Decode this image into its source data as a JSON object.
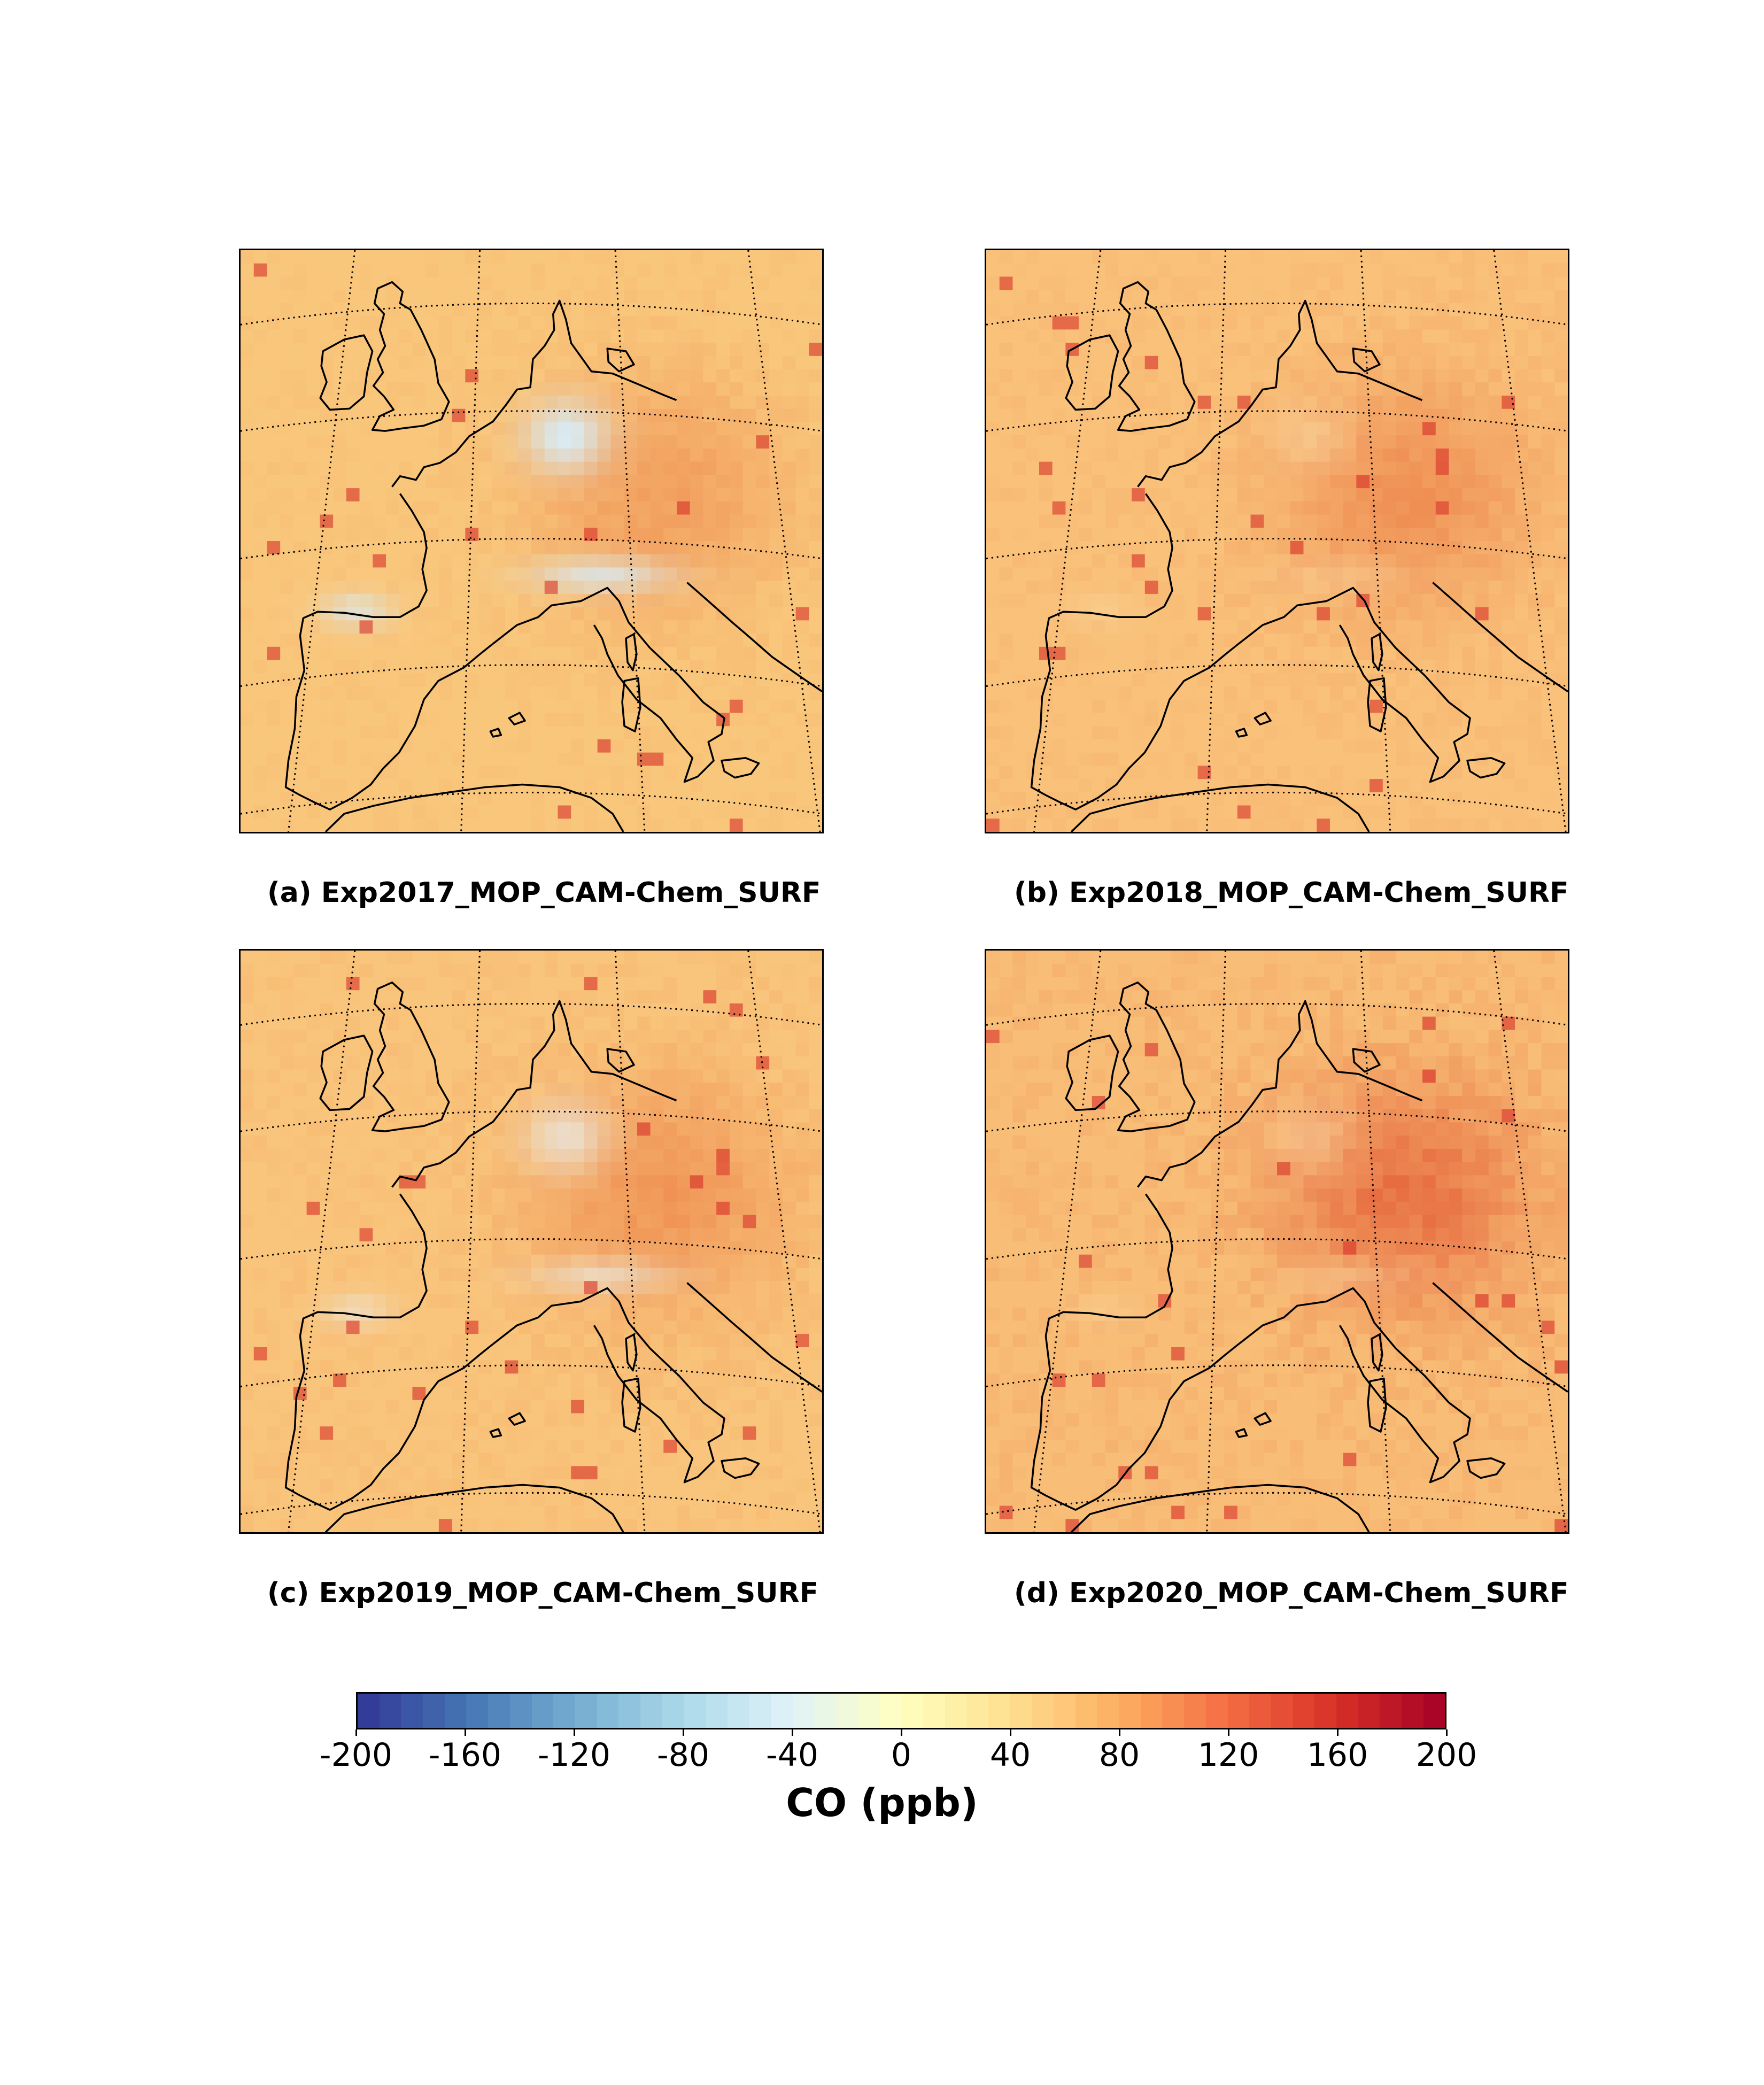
{
  "figure": {
    "panels": [
      {
        "caption": "(a) Exp2017_MOP_CAM-Chem_SURF",
        "base": "#f9c77c",
        "hot": "#f19a5a",
        "cool": "#d9ebf4",
        "cool_strength": 1.0
      },
      {
        "caption": "(b) Exp2018_MOP_CAM-Chem_SURF",
        "base": "#f9c17a",
        "hot": "#ee8a50",
        "cool": "#fbe3b2",
        "cool_strength": 0.4
      },
      {
        "caption": "(c) Exp2019_MOP_CAM-Chem_SURF",
        "base": "#f9c47b",
        "hot": "#ef9052",
        "cool": "#e8f1f3",
        "cool_strength": 0.7
      },
      {
        "caption": "(d) Exp2020_MOP_CAM-Chem_SURF",
        "base": "#f8bd76",
        "hot": "#e6683e",
        "cool": "#fbe1b0",
        "cool_strength": 0.4
      }
    ],
    "colorbar": {
      "label": "CO (ppb)",
      "min": -200,
      "max": 200,
      "ticks": [
        "-200",
        "-160",
        "-120",
        "-80",
        "-40",
        "0",
        "40",
        "80",
        "120",
        "160",
        "200"
      ],
      "colormap": [
        "#313695",
        "#4575b4",
        "#74add1",
        "#abd9e9",
        "#e0f3f8",
        "#ffffbf",
        "#fee090",
        "#fdae61",
        "#f46d43",
        "#d73027",
        "#a50026"
      ]
    }
  }
}
